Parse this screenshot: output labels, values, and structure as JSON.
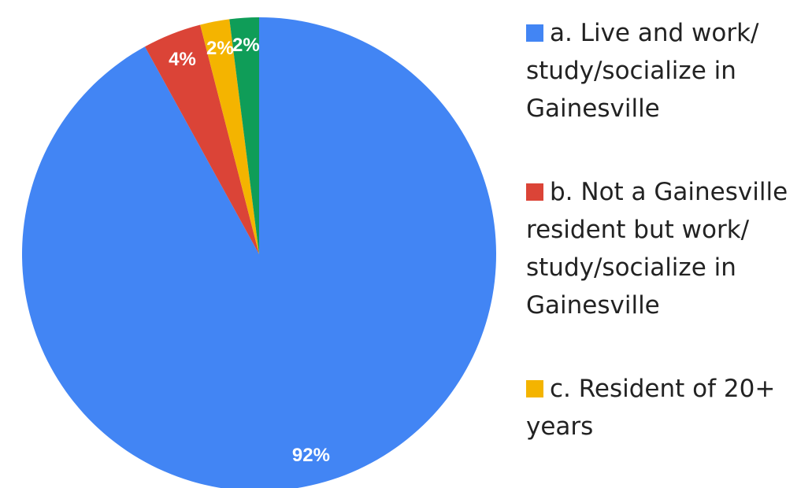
{
  "chart_data": {
    "type": "pie",
    "categories": [
      "a. Live and work/ study/socialize in Gainesville",
      "b. Not a Gainesville resident but work/ study/socialize in Gainesville",
      "c. Resident of 20+ years",
      null
    ],
    "values": [
      92,
      4,
      2,
      2
    ],
    "value_labels": [
      "92%",
      "4%",
      "2%",
      "2%"
    ],
    "colors": [
      "#4285f4",
      "#db4437",
      "#f4b400",
      "#0f9d58"
    ],
    "legend": "right"
  }
}
